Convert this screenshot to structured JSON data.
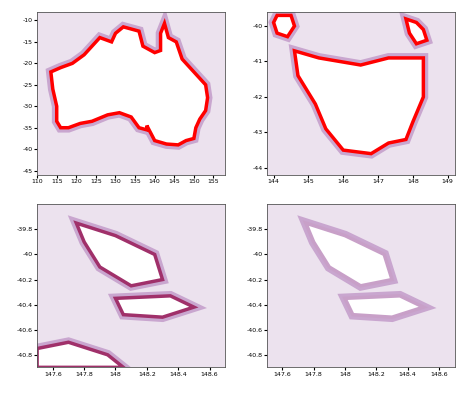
{
  "chart_data": [
    {
      "type": "map",
      "xlim": [
        110,
        158
      ],
      "ylim": [
        -46,
        -8
      ],
      "xticks": [
        110,
        115,
        120,
        125,
        130,
        135,
        140,
        145,
        150,
        155
      ],
      "yticks": [
        -45,
        -40,
        -35,
        -30,
        -25,
        -20,
        -15,
        -10
      ],
      "color": "#ff0000",
      "shapes": [
        {
          "x": [
            113.5,
            114,
            115,
            115,
            116,
            118,
            121,
            124,
            128,
            131,
            134,
            136,
            138,
            138,
            140,
            143,
            146,
            148,
            150,
            150.5,
            151.5,
            153,
            153.5,
            153,
            150,
            147,
            145.5,
            143.5,
            142.5,
            141.5,
            141.5,
            140,
            137,
            136,
            132,
            130,
            129,
            126,
            124,
            122,
            119,
            116,
            113.5
          ],
          "y": [
            -22,
            -26,
            -30,
            -33.5,
            -35,
            -35,
            -34,
            -33.5,
            -32,
            -31.5,
            -32.5,
            -35,
            -35.5,
            -34.5,
            -38,
            -38.8,
            -39,
            -38,
            -37.5,
            -35,
            -33,
            -31,
            -28,
            -25,
            -22,
            -19,
            -15,
            -14,
            -10.7,
            -13,
            -17,
            -17.5,
            -16,
            -12.5,
            -11.5,
            -13,
            -15,
            -14,
            -16,
            -18,
            -20,
            -21,
            -22
          ]
        }
      ]
    },
    {
      "type": "map",
      "xlim": [
        143.8,
        149.2
      ],
      "ylim": [
        -44.2,
        -39.6
      ],
      "xticks": [
        144,
        145,
        146,
        147,
        148,
        149
      ],
      "yticks": [
        -44,
        -43,
        -42,
        -41,
        -40
      ],
      "color": "#ff0000",
      "shapes": [
        {
          "x": [
            144.6,
            145.3,
            146.5,
            147.3,
            148.3,
            148.3,
            148,
            147.8,
            147.3,
            146.8,
            146,
            145.5,
            145.2,
            144.7,
            144.6
          ],
          "y": [
            -40.7,
            -40.9,
            -41.1,
            -40.9,
            -40.9,
            -42,
            -42.7,
            -43.2,
            -43.3,
            -43.6,
            -43.5,
            -42.9,
            -42.2,
            -41.4,
            -40.7
          ]
        },
        {
          "x": [
            144.1,
            144.5,
            144.6,
            144.4,
            144.1,
            144.0,
            144.1
          ],
          "y": [
            -39.7,
            -39.7,
            -40.0,
            -40.3,
            -40.2,
            -39.9,
            -39.7
          ]
        },
        {
          "x": [
            147.8,
            148.1,
            148.3,
            148.4,
            148.1,
            147.9,
            147.8
          ],
          "y": [
            -39.8,
            -39.9,
            -40.1,
            -40.4,
            -40.5,
            -40.2,
            -39.8
          ]
        }
      ]
    },
    {
      "type": "map",
      "xlim": [
        147.5,
        148.7
      ],
      "ylim": [
        -40.9,
        -39.6
      ],
      "xticks": [
        147.6,
        147.8,
        148,
        148.2,
        148.4,
        148.6
      ],
      "yticks": [
        -40.8,
        -40.6,
        -40.4,
        -40.2,
        -40,
        -39.8
      ],
      "color": "#a0306a",
      "shapes": [
        {
          "x": [
            147.75,
            148.0,
            148.25,
            148.3,
            148.1,
            147.9,
            147.8,
            147.75
          ],
          "y": [
            -39.75,
            -39.85,
            -40.0,
            -40.2,
            -40.25,
            -40.1,
            -39.9,
            -39.75
          ]
        },
        {
          "x": [
            148.0,
            148.35,
            148.5,
            148.3,
            148.05,
            148.0
          ],
          "y": [
            -40.35,
            -40.33,
            -40.42,
            -40.5,
            -40.48,
            -40.35
          ]
        },
        {
          "x": [
            147.5,
            147.7,
            147.95,
            148.05,
            147.5,
            147.5
          ],
          "y": [
            -40.75,
            -40.7,
            -40.8,
            -40.9,
            -40.9,
            -40.75
          ]
        }
      ]
    },
    {
      "type": "map",
      "xlim": [
        147.5,
        148.7
      ],
      "ylim": [
        -40.9,
        -39.6
      ],
      "xticks": [
        147.6,
        147.8,
        148,
        148.2,
        148.4,
        148.6
      ],
      "yticks": [
        -40.8,
        -40.6,
        -40.4,
        -40.2,
        -40,
        -39.8
      ],
      "color": "#c8a0c8",
      "shapes": [
        {
          "x": [
            147.75,
            148.0,
            148.25,
            148.3,
            148.1,
            147.9,
            147.8,
            147.75
          ],
          "y": [
            -39.75,
            -39.85,
            -40.0,
            -40.2,
            -40.25,
            -40.1,
            -39.9,
            -39.75
          ]
        },
        {
          "x": [
            148.0,
            148.35,
            148.5,
            148.3,
            148.05,
            148.0
          ],
          "y": [
            -40.35,
            -40.33,
            -40.42,
            -40.5,
            -40.48,
            -40.35
          ]
        }
      ]
    }
  ]
}
